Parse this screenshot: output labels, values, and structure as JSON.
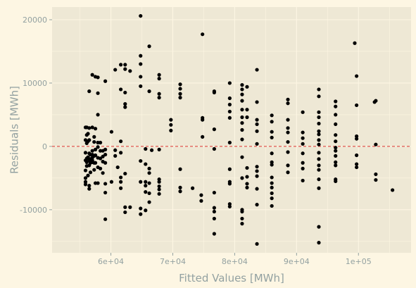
{
  "chart_data": {
    "type": "scatter",
    "xlabel": "Fitted Values [MWh]",
    "ylabel": "Residuals [MWh]",
    "xlim": [
      50500,
      108500
    ],
    "ylim": [
      -16800,
      22000
    ],
    "x_ticks": [
      {
        "value": 60000,
        "label": "6e+04"
      },
      {
        "value": 70000,
        "label": "7e+04"
      },
      {
        "value": 80000,
        "label": "8e+04"
      },
      {
        "value": 90000,
        "label": "9e+04"
      },
      {
        "value": 100000,
        "label": "1e+05"
      }
    ],
    "y_ticks": [
      {
        "value": -10000,
        "label": "-10000"
      },
      {
        "value": 0,
        "label": "0"
      },
      {
        "value": 10000,
        "label": "10000"
      },
      {
        "value": 20000,
        "label": "20000"
      }
    ],
    "reference_line": {
      "y": 0,
      "style": "dashed",
      "color": "#dc322f"
    },
    "grid": true,
    "colors": {
      "background": "#fdf6e3",
      "panel": "#eee8d5",
      "grid": "#fdf6e3",
      "points": "#000000",
      "text": "#93a1a1"
    },
    "series": [
      {
        "points": [
          [
            55900,
            3000
          ],
          [
            55900,
            1000
          ],
          [
            55900,
            -1000
          ],
          [
            55900,
            -2200
          ],
          [
            55900,
            -3800
          ],
          [
            55900,
            -5000
          ],
          [
            55900,
            -5600
          ],
          [
            55900,
            -6000
          ],
          [
            56100,
            3000
          ],
          [
            56100,
            1800
          ],
          [
            56100,
            500
          ],
          [
            56100,
            -1900
          ],
          [
            56100,
            -2500
          ],
          [
            56100,
            -3100
          ],
          [
            56300,
            2000
          ],
          [
            56300,
            800
          ],
          [
            56300,
            -1700
          ],
          [
            56300,
            -4600
          ],
          [
            56500,
            8700
          ],
          [
            56500,
            2900
          ],
          [
            56500,
            1000
          ],
          [
            56500,
            -1100
          ],
          [
            56500,
            -2200
          ],
          [
            56500,
            -3000
          ],
          [
            56500,
            -6200
          ],
          [
            56500,
            -6700
          ],
          [
            56700,
            -1300
          ],
          [
            56700,
            -2000
          ],
          [
            56700,
            -2600
          ],
          [
            56700,
            -4100
          ],
          [
            57000,
            11300
          ],
          [
            57000,
            3000
          ],
          [
            57000,
            -700
          ],
          [
            57000,
            -1300
          ],
          [
            57000,
            -1800
          ],
          [
            57000,
            -2200
          ],
          [
            57000,
            -2500
          ],
          [
            57300,
            1500
          ],
          [
            57300,
            700
          ],
          [
            57300,
            -1500
          ],
          [
            57300,
            -2600
          ],
          [
            57300,
            -3700
          ],
          [
            57500,
            11000
          ],
          [
            57500,
            2800
          ],
          [
            57500,
            -500
          ],
          [
            57500,
            -1400
          ],
          [
            57500,
            -2600
          ],
          [
            57500,
            -5800
          ],
          [
            57900,
            10900
          ],
          [
            57900,
            8400
          ],
          [
            57900,
            5000
          ],
          [
            57900,
            600
          ],
          [
            57900,
            -100
          ],
          [
            57900,
            -1800
          ],
          [
            57900,
            -3300
          ],
          [
            57900,
            -5800
          ],
          [
            58300,
            600
          ],
          [
            58300,
            -700
          ],
          [
            58300,
            -1900
          ],
          [
            58300,
            -3500
          ],
          [
            58700,
            -700
          ],
          [
            58700,
            -1600
          ],
          [
            58700,
            -2400
          ],
          [
            58700,
            -4200
          ],
          [
            59100,
            10300
          ],
          [
            59100,
            -500
          ],
          [
            59100,
            -1300
          ],
          [
            59100,
            -2600
          ],
          [
            59100,
            -5900
          ],
          [
            59100,
            -7300
          ],
          [
            59100,
            -11500
          ],
          [
            60100,
            2300
          ],
          [
            60100,
            -5600
          ],
          [
            60700,
            12100
          ],
          [
            60700,
            -600
          ],
          [
            60700,
            -1500
          ],
          [
            61100,
            -3300
          ],
          [
            61600,
            12900
          ],
          [
            61600,
            9000
          ],
          [
            61600,
            800
          ],
          [
            61600,
            -1000
          ],
          [
            61600,
            -4900
          ],
          [
            61600,
            -5600
          ],
          [
            61600,
            -6600
          ],
          [
            62300,
            12900
          ],
          [
            62300,
            12200
          ],
          [
            62300,
            8500
          ],
          [
            62300,
            6700
          ],
          [
            62300,
            6200
          ],
          [
            62300,
            -4300
          ],
          [
            62300,
            -9600
          ],
          [
            62300,
            -10400
          ],
          [
            63100,
            11900
          ],
          [
            63100,
            -9600
          ],
          [
            64800,
            20600
          ],
          [
            64800,
            14300
          ],
          [
            64800,
            13000
          ],
          [
            64800,
            11000
          ],
          [
            64800,
            9500
          ],
          [
            64800,
            -2300
          ],
          [
            64800,
            -5600
          ],
          [
            64800,
            -9800
          ],
          [
            64800,
            -10700
          ],
          [
            65600,
            -400
          ],
          [
            65600,
            -2800
          ],
          [
            65600,
            -5600
          ],
          [
            65600,
            -6200
          ],
          [
            65600,
            -7200
          ],
          [
            65600,
            -10100
          ],
          [
            66200,
            15800
          ],
          [
            66200,
            8700
          ],
          [
            66200,
            -3500
          ],
          [
            66200,
            -4200
          ],
          [
            66200,
            -5800
          ],
          [
            66200,
            -7400
          ],
          [
            66200,
            -8800
          ],
          [
            66600,
            -600
          ],
          [
            67800,
            11300
          ],
          [
            67800,
            10700
          ],
          [
            67800,
            8300
          ],
          [
            67800,
            7700
          ],
          [
            67800,
            -500
          ],
          [
            67800,
            -5200
          ],
          [
            67800,
            -5600
          ],
          [
            67800,
            -6300
          ],
          [
            67800,
            -6800
          ],
          [
            67800,
            -7500
          ],
          [
            69700,
            4200
          ],
          [
            69700,
            3400
          ],
          [
            69700,
            2500
          ],
          [
            71200,
            9800
          ],
          [
            71200,
            9100
          ],
          [
            71200,
            8300
          ],
          [
            71200,
            7700
          ],
          [
            71200,
            -3600
          ],
          [
            71200,
            -6500
          ],
          [
            71200,
            -7100
          ],
          [
            73200,
            -6600
          ],
          [
            74600,
            -7700
          ],
          [
            74600,
            -8600
          ],
          [
            74800,
            17700
          ],
          [
            74800,
            4500
          ],
          [
            74800,
            4200
          ],
          [
            74800,
            1500
          ],
          [
            76700,
            8700
          ],
          [
            76700,
            8500
          ],
          [
            76700,
            2700
          ],
          [
            76700,
            -400
          ],
          [
            76700,
            -7300
          ],
          [
            76700,
            -9700
          ],
          [
            76700,
            -10300
          ],
          [
            76700,
            -11400
          ],
          [
            76700,
            -13800
          ],
          [
            79200,
            10000
          ],
          [
            79200,
            7600
          ],
          [
            79200,
            6600
          ],
          [
            79200,
            5500
          ],
          [
            79200,
            4500
          ],
          [
            79200,
            600
          ],
          [
            79200,
            -3600
          ],
          [
            79200,
            -5600
          ],
          [
            79200,
            -5900
          ],
          [
            79200,
            -9100
          ],
          [
            79200,
            -9500
          ],
          [
            81200,
            9700
          ],
          [
            81200,
            9000
          ],
          [
            81200,
            8200
          ],
          [
            81200,
            7200
          ],
          [
            81200,
            5800
          ],
          [
            81200,
            4600
          ],
          [
            81200,
            3700
          ],
          [
            81200,
            2600
          ],
          [
            81200,
            1100
          ],
          [
            81200,
            -1700
          ],
          [
            81200,
            -5000
          ],
          [
            81200,
            -10000
          ],
          [
            81200,
            -10300
          ],
          [
            81200,
            -11400
          ],
          [
            81200,
            -12200
          ],
          [
            82000,
            9400
          ],
          [
            82000,
            5800
          ],
          [
            82000,
            4600
          ],
          [
            82000,
            -3400
          ],
          [
            82000,
            -4800
          ],
          [
            82000,
            -5900
          ],
          [
            82000,
            -6500
          ],
          [
            83600,
            12100
          ],
          [
            83600,
            7000
          ],
          [
            83600,
            4200
          ],
          [
            83600,
            3500
          ],
          [
            83600,
            2400
          ],
          [
            83600,
            400
          ],
          [
            83600,
            -3200
          ],
          [
            83600,
            -3900
          ],
          [
            83600,
            -4700
          ],
          [
            83600,
            -6700
          ],
          [
            83600,
            -9200
          ],
          [
            83600,
            -15400
          ],
          [
            86000,
            4900
          ],
          [
            86000,
            3900
          ],
          [
            86000,
            2300
          ],
          [
            86000,
            1400
          ],
          [
            86000,
            -1100
          ],
          [
            86000,
            -2500
          ],
          [
            86000,
            -2900
          ],
          [
            86000,
            -4900
          ],
          [
            86000,
            -5800
          ],
          [
            86000,
            -6500
          ],
          [
            86000,
            -7400
          ],
          [
            86000,
            -8200
          ],
          [
            86000,
            -9400
          ],
          [
            88600,
            7400
          ],
          [
            88600,
            6800
          ],
          [
            88600,
            4200
          ],
          [
            88600,
            2900
          ],
          [
            88600,
            2200
          ],
          [
            88600,
            700
          ],
          [
            88600,
            -900
          ],
          [
            88600,
            -3000
          ],
          [
            88600,
            -4100
          ],
          [
            91000,
            5400
          ],
          [
            91000,
            2200
          ],
          [
            91000,
            1300
          ],
          [
            91000,
            400
          ],
          [
            91000,
            -1100
          ],
          [
            91000,
            -2600
          ],
          [
            91000,
            -3500
          ],
          [
            91000,
            -5400
          ],
          [
            93600,
            9000
          ],
          [
            93600,
            7900
          ],
          [
            93600,
            5400
          ],
          [
            93600,
            4600
          ],
          [
            93600,
            3600
          ],
          [
            93600,
            2400
          ],
          [
            93600,
            1900
          ],
          [
            93600,
            1000
          ],
          [
            93600,
            300
          ],
          [
            93600,
            -1000
          ],
          [
            93600,
            -2000
          ],
          [
            93600,
            -3000
          ],
          [
            93600,
            -3700
          ],
          [
            93600,
            -5200
          ],
          [
            93600,
            -6600
          ],
          [
            93600,
            -12700
          ],
          [
            93600,
            -15200
          ],
          [
            96300,
            7100
          ],
          [
            96300,
            6300
          ],
          [
            96300,
            5000
          ],
          [
            96300,
            3500
          ],
          [
            96300,
            1800
          ],
          [
            96300,
            800
          ],
          [
            96300,
            -200
          ],
          [
            96300,
            -700
          ],
          [
            96300,
            -1500
          ],
          [
            96300,
            -2500
          ],
          [
            96300,
            -3000
          ],
          [
            96300,
            -5200
          ],
          [
            96300,
            -5500
          ],
          [
            99400,
            16300
          ],
          [
            99700,
            11100
          ],
          [
            99700,
            6500
          ],
          [
            99700,
            1600
          ],
          [
            99700,
            1200
          ],
          [
            99700,
            -1400
          ],
          [
            99700,
            -2800
          ],
          [
            99700,
            -3300
          ],
          [
            102600,
            7000
          ],
          [
            102800,
            7200
          ],
          [
            102800,
            300
          ],
          [
            102800,
            -4400
          ],
          [
            102800,
            -5300
          ],
          [
            105500,
            -6900
          ]
        ]
      }
    ]
  }
}
